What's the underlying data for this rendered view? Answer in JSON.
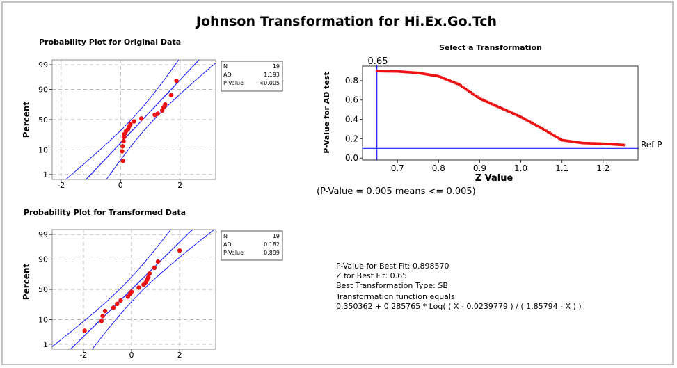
{
  "title": "Johnson Transformation for Hi.Ex.Go.Tch",
  "colors": {
    "points": "#ee1111",
    "lines": "#1a1aff",
    "grid": "#b4b4b4",
    "frame": "#8c8c8c"
  },
  "chart_data": [
    {
      "type": "scatter",
      "title": "Probability Plot for Original Data",
      "ylabel": "Percent",
      "xlim": [
        -2.3,
        3.2
      ],
      "xticks": [
        -2,
        0,
        2
      ],
      "xtick_labels": [
        "-2",
        "0",
        "2"
      ],
      "yticks": [
        1,
        10,
        50,
        90,
        99
      ],
      "ytick_labels": [
        "1",
        "10",
        "50",
        "90",
        "99"
      ],
      "yscale": "normal-probability",
      "grid": true,
      "points": [
        {
          "x": 0.08,
          "y": 4
        },
        {
          "x": 0.05,
          "y": 9
        },
        {
          "x": 0.07,
          "y": 13
        },
        {
          "x": 0.1,
          "y": 18
        },
        {
          "x": 0.12,
          "y": 23
        },
        {
          "x": 0.13,
          "y": 27
        },
        {
          "x": 0.18,
          "y": 31
        },
        {
          "x": 0.25,
          "y": 34
        },
        {
          "x": 0.28,
          "y": 38
        },
        {
          "x": 0.33,
          "y": 42
        },
        {
          "x": 0.45,
          "y": 47
        },
        {
          "x": 0.7,
          "y": 52
        },
        {
          "x": 1.15,
          "y": 58
        },
        {
          "x": 1.25,
          "y": 60
        },
        {
          "x": 1.4,
          "y": 65
        },
        {
          "x": 1.45,
          "y": 70
        },
        {
          "x": 1.5,
          "y": 74
        },
        {
          "x": 1.7,
          "y": 85
        },
        {
          "x": 1.88,
          "y": 95
        }
      ],
      "fit": {
        "intercept": 0.74,
        "slope": 0.75,
        "ci": 0.38
      },
      "stats": [
        {
          "label": "N",
          "value": "19"
        },
        {
          "label": "AD",
          "value": "1.193"
        },
        {
          "label": "P-Value",
          "value": "<0.005"
        }
      ]
    },
    {
      "type": "scatter",
      "title": "Probability Plot for Transformed Data",
      "ylabel": "Percent",
      "xlim": [
        -3.3,
        3.5
      ],
      "xticks": [
        -2,
        0,
        2
      ],
      "xtick_labels": [
        "-2",
        "0",
        "2"
      ],
      "yticks": [
        1,
        10,
        50,
        90,
        99
      ],
      "ytick_labels": [
        "1",
        "10",
        "50",
        "90",
        "99"
      ],
      "yscale": "normal-probability",
      "grid": true,
      "points": [
        {
          "x": -1.95,
          "y": 4
        },
        {
          "x": -1.25,
          "y": 9
        },
        {
          "x": -1.2,
          "y": 13
        },
        {
          "x": -1.1,
          "y": 18
        },
        {
          "x": -0.75,
          "y": 22
        },
        {
          "x": -0.6,
          "y": 27
        },
        {
          "x": -0.45,
          "y": 32
        },
        {
          "x": -0.15,
          "y": 38
        },
        {
          "x": -0.05,
          "y": 43
        },
        {
          "x": 0.0,
          "y": 46
        },
        {
          "x": 0.3,
          "y": 53
        },
        {
          "x": 0.5,
          "y": 58
        },
        {
          "x": 0.6,
          "y": 62
        },
        {
          "x": 0.65,
          "y": 66
        },
        {
          "x": 0.7,
          "y": 70
        },
        {
          "x": 0.75,
          "y": 75
        },
        {
          "x": 0.95,
          "y": 82
        },
        {
          "x": 1.1,
          "y": 88
        },
        {
          "x": 2.0,
          "y": 95
        }
      ],
      "fit": {
        "intercept": 0.0,
        "slope": 1.0,
        "ci": 0.5
      },
      "stats": [
        {
          "label": "N",
          "value": "19"
        },
        {
          "label": "AD",
          "value": "0.182"
        },
        {
          "label": "P-Value",
          "value": "0.899"
        }
      ]
    },
    {
      "type": "scatter",
      "title": "Select a Transformation",
      "xlabel": "Z Value",
      "ylabel": "P-Value for AD test",
      "xlim": [
        0.615,
        1.285
      ],
      "ylim": [
        -0.02,
        0.95
      ],
      "xticks": [
        0.7,
        0.8,
        0.9,
        1.0,
        1.1,
        1.2
      ],
      "xtick_labels": [
        "0.7",
        "0.8",
        "0.9",
        "1.0",
        "1.1",
        "1.2"
      ],
      "yticks": [
        0.0,
        0.2,
        0.4,
        0.6,
        0.8
      ],
      "ytick_labels": [
        "0.0",
        "0.2",
        "0.4",
        "0.6",
        "0.8"
      ],
      "grid": false,
      "curve": [
        [
          0.65,
          0.898
        ],
        [
          0.7,
          0.895
        ],
        [
          0.75,
          0.88
        ],
        [
          0.8,
          0.845
        ],
        [
          0.85,
          0.76
        ],
        [
          0.9,
          0.615
        ],
        [
          0.95,
          0.52
        ],
        [
          1.0,
          0.425
        ],
        [
          1.05,
          0.31
        ],
        [
          1.1,
          0.185
        ],
        [
          1.15,
          0.155
        ],
        [
          1.2,
          0.148
        ],
        [
          1.25,
          0.135
        ]
      ],
      "selected_z": 0.65,
      "selected_label": "0.65",
      "ref_p": 0.1,
      "ref_label": "Ref P",
      "note": "(P-Value = 0.005 means <= 0.005)"
    }
  ],
  "summary": [
    "P-Value for Best Fit: 0.898570",
    "Z for Best Fit: 0.65",
    "Best Transformation Type: SB",
    "Transformation function equals",
    "0.350362 + 0.285765 * Log( ( X - 0.0239779 ) / ( 1.85794 - X ) )"
  ]
}
